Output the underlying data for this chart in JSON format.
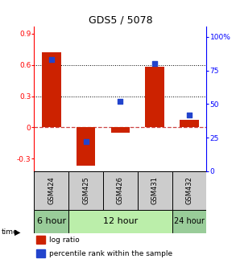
{
  "title": "GDS5 / 5078",
  "samples": [
    "GSM424",
    "GSM425",
    "GSM426",
    "GSM431",
    "GSM432"
  ],
  "log_ratio": [
    0.72,
    -0.37,
    -0.05,
    0.58,
    0.07
  ],
  "percentile_rank": [
    83,
    22,
    52,
    80,
    42
  ],
  "ylim_left": [
    -0.42,
    0.97
  ],
  "ylim_right": [
    0,
    107.8
  ],
  "yticks_left": [
    -0.3,
    0.0,
    0.3,
    0.6,
    0.9
  ],
  "yticks_right": [
    0,
    25,
    50,
    75,
    100
  ],
  "ytick_labels_left": [
    "-0.3",
    "0",
    "0.3",
    "0.6",
    "0.9"
  ],
  "ytick_labels_right": [
    "0",
    "25",
    "50",
    "75",
    "100%"
  ],
  "hlines": [
    0.3,
    0.6
  ],
  "bar_color": "#cc2200",
  "dot_color": "#2244cc",
  "zero_line_color": "#cc4444",
  "grid_color": "#000000",
  "bg_color": "#ffffff",
  "sample_bg": "#cccccc",
  "time_configs": [
    {
      "label": "6 hour",
      "start": 0,
      "end": 1,
      "color": "#99cc99",
      "fontsize": 8
    },
    {
      "label": "12 hour",
      "start": 1,
      "end": 4,
      "color": "#bbeeaa",
      "fontsize": 8
    },
    {
      "label": "24 hour",
      "start": 4,
      "end": 5,
      "color": "#99cc99",
      "fontsize": 7
    }
  ],
  "legend_log_ratio_color": "#cc2200",
  "legend_percentile_color": "#2244cc"
}
